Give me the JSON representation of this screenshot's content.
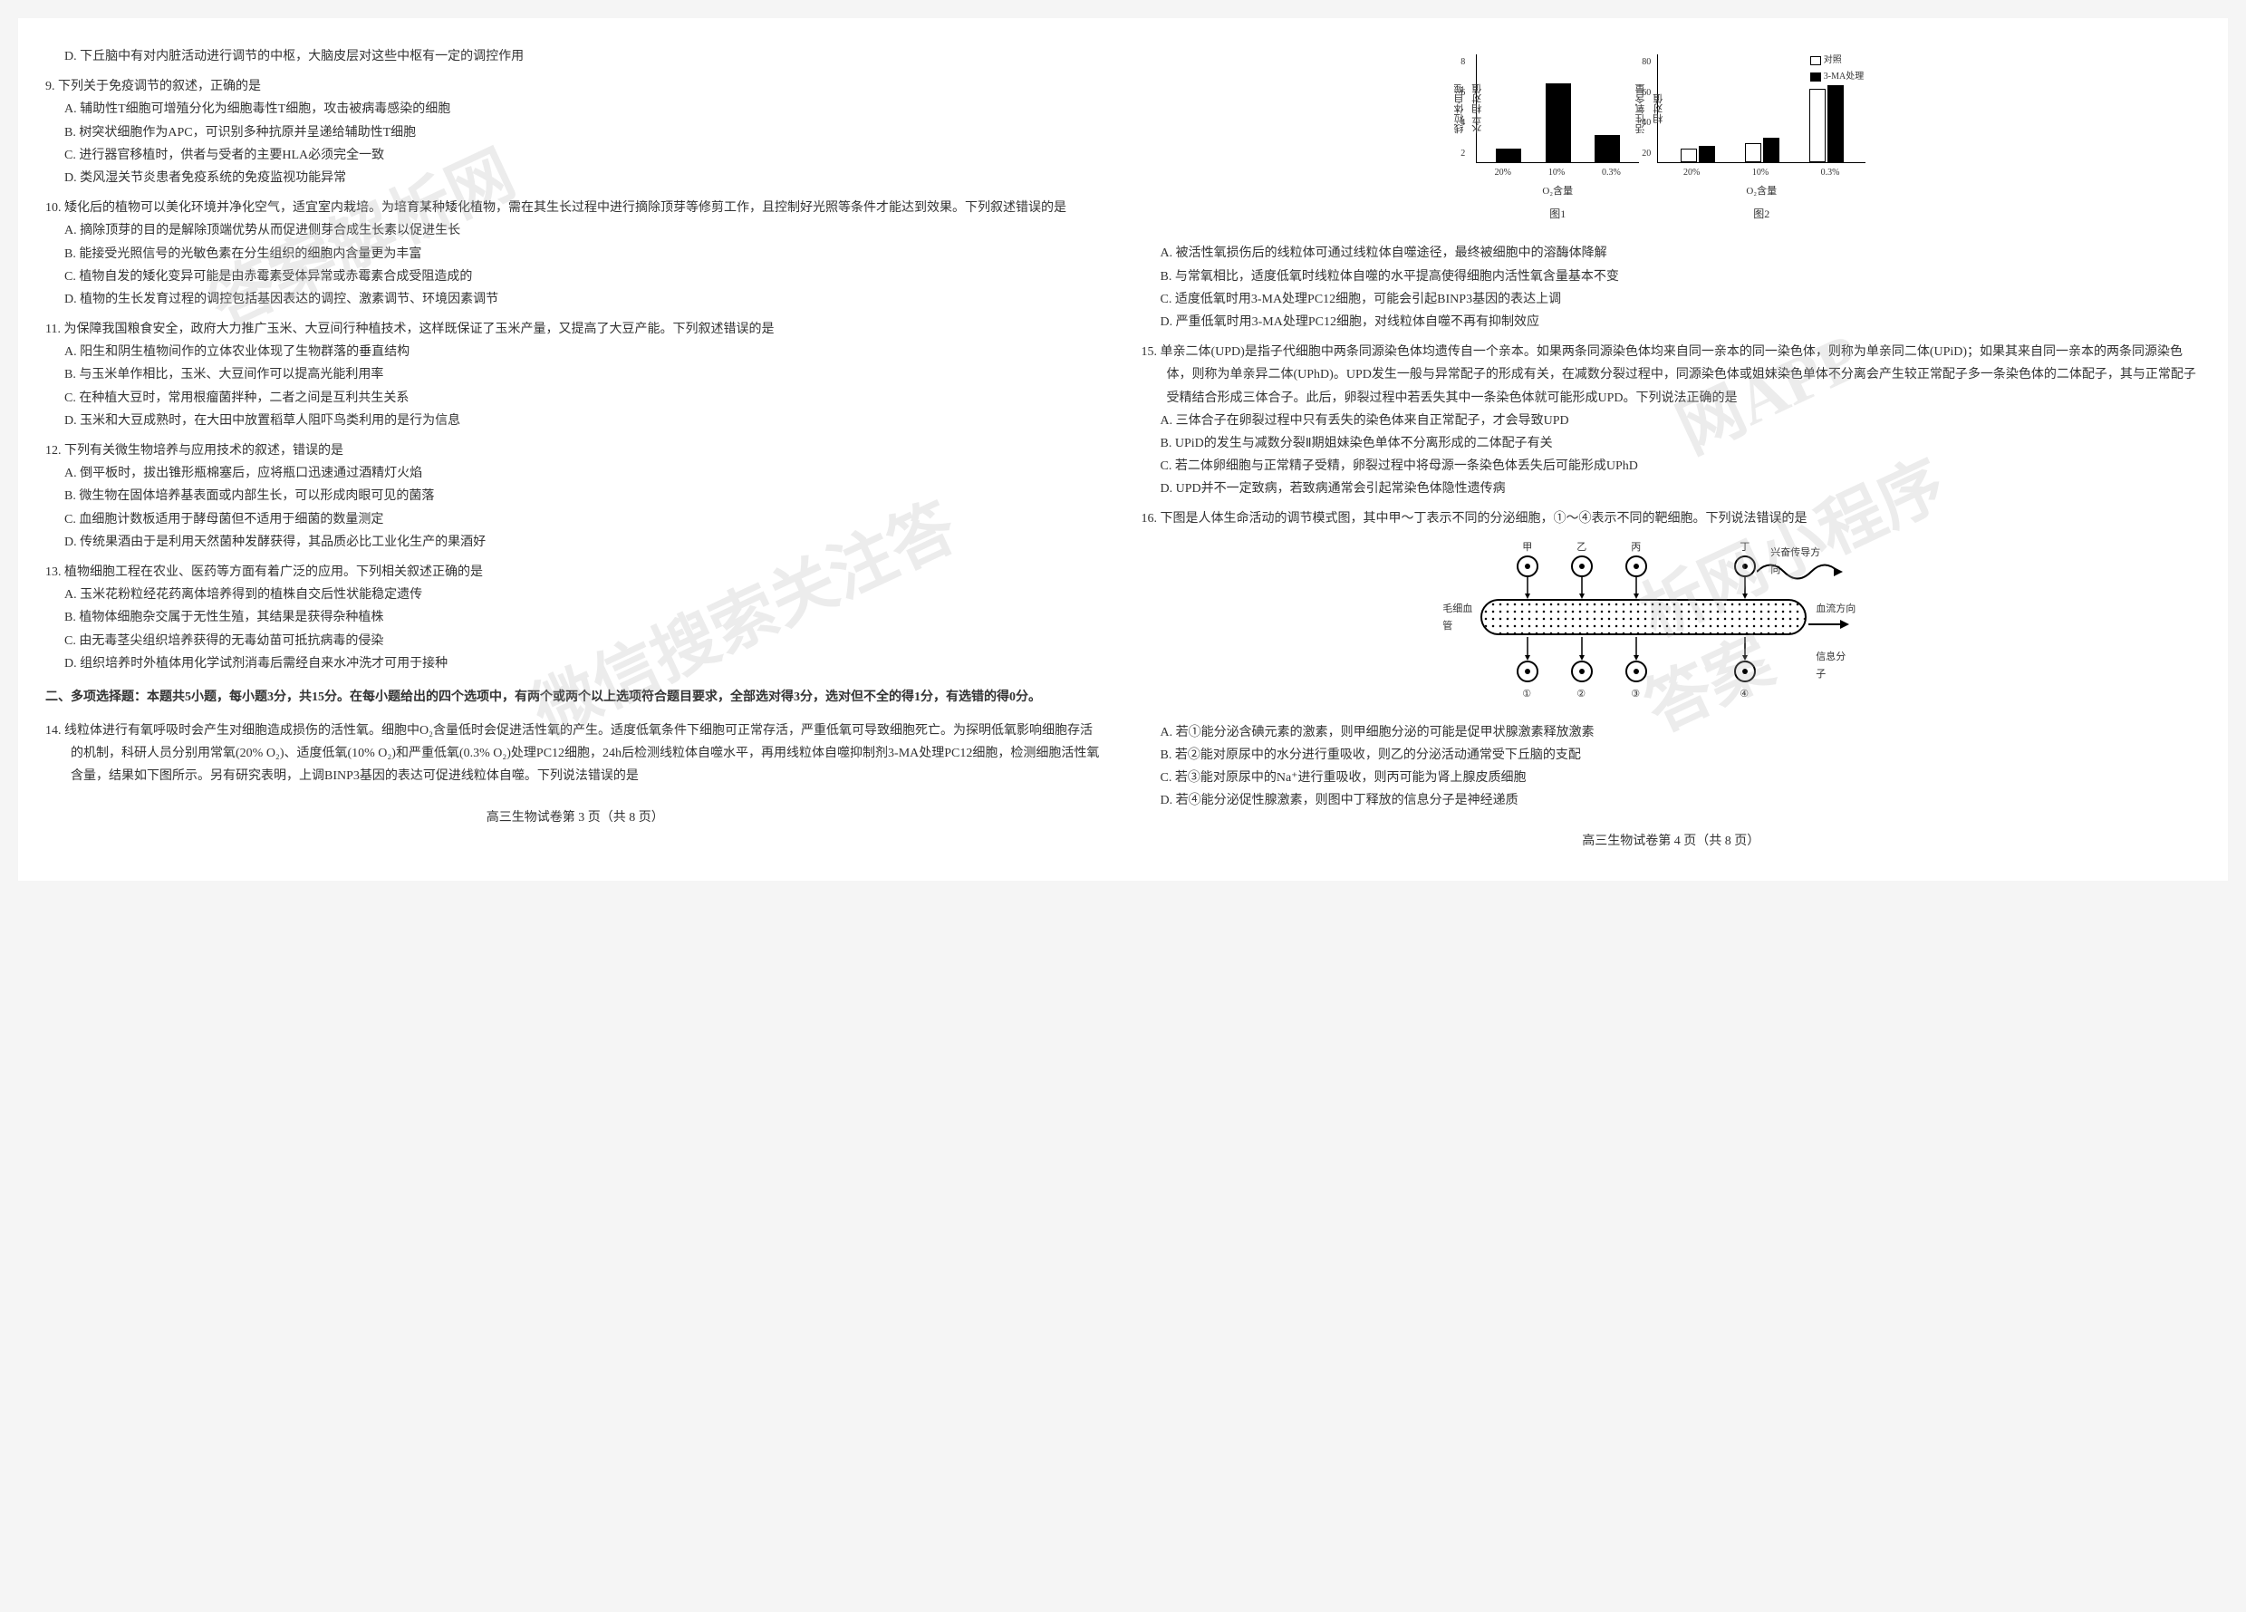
{
  "leftColumn": {
    "q8d": "D. 下丘脑中有对内脏活动进行调节的中枢，大脑皮层对这些中枢有一定的调控作用",
    "q9": {
      "stem": "9. 下列关于免疫调节的叙述，正确的是",
      "a": "A. 辅助性T细胞可增殖分化为细胞毒性T细胞，攻击被病毒感染的细胞",
      "b": "B. 树突状细胞作为APC，可识别多种抗原并呈递给辅助性T细胞",
      "c": "C. 进行器官移植时，供者与受者的主要HLA必须完全一致",
      "d": "D. 类风湿关节炎患者免疫系统的免疫监视功能异常"
    },
    "q10": {
      "stem": "10. 矮化后的植物可以美化环境并净化空气，适宜室内栽培。为培育某种矮化植物，需在其生长过程中进行摘除顶芽等修剪工作，且控制好光照等条件才能达到效果。下列叙述错误的是",
      "a": "A. 摘除顶芽的目的是解除顶端优势从而促进侧芽合成生长素以促进生长",
      "b": "B. 能接受光照信号的光敏色素在分生组织的细胞内含量更为丰富",
      "c": "C. 植物自发的矮化变异可能是由赤霉素受体异常或赤霉素合成受阻造成的",
      "d": "D. 植物的生长发育过程的调控包括基因表达的调控、激素调节、环境因素调节"
    },
    "q11": {
      "stem": "11. 为保障我国粮食安全，政府大力推广玉米、大豆间行种植技术，这样既保证了玉米产量，又提高了大豆产能。下列叙述错误的是",
      "a": "A. 阳生和阴生植物间作的立体农业体现了生物群落的垂直结构",
      "b": "B. 与玉米单作相比，玉米、大豆间作可以提高光能利用率",
      "c": "C. 在种植大豆时，常用根瘤菌拌种，二者之间是互利共生关系",
      "d": "D. 玉米和大豆成熟时，在大田中放置稻草人阻吓鸟类利用的是行为信息"
    },
    "q12": {
      "stem": "12. 下列有关微生物培养与应用技术的叙述，错误的是",
      "a": "A. 倒平板时，拔出锥形瓶棉塞后，应将瓶口迅速通过酒精灯火焰",
      "b": "B. 微生物在固体培养基表面或内部生长，可以形成肉眼可见的菌落",
      "c": "C. 血细胞计数板适用于酵母菌但不适用于细菌的数量测定",
      "d": "D. 传统果酒由于是利用天然菌种发酵获得，其品质必比工业化生产的果酒好"
    },
    "q13": {
      "stem": "13. 植物细胞工程在农业、医药等方面有着广泛的应用。下列相关叙述正确的是",
      "a": "A. 玉米花粉粒经花药离体培养得到的植株自交后性状能稳定遗传",
      "b": "B. 植物体细胞杂交属于无性生殖，其结果是获得杂种植株",
      "c": "C. 由无毒茎尖组织培养获得的无毒幼苗可抵抗病毒的侵染",
      "d": "D. 组织培养时外植体用化学试剂消毒后需经自来水冲洗才可用于接种"
    },
    "section2": "二、多项选择题：本题共5小题，每小题3分，共15分。在每小题给出的四个选项中，有两个或两个以上选项符合题目要求，全部选对得3分，选对但不全的得1分，有选错的得0分。",
    "q14": {
      "stem": "14. 线粒体进行有氧呼吸时会产生对细胞造成损伤的活性氧。细胞中O₂含量低时会促进活性氧的产生。适度低氧条件下细胞可正常存活，严重低氧可导致细胞死亡。为探明低氧影响细胞存活的机制，科研人员分别用常氧(20% O₂)、适度低氧(10% O₂)和严重低氧(0.3% O₂)处理PC12细胞，24h后检测线粒体自噬水平，再用线粒体自噬抑制剂3-MA处理PC12细胞，检测细胞活性氧含量，结果如下图所示。另有研究表明，上调BINP3基因的表达可促进线粒体自噬。下列说法错误的是"
    },
    "footer": "高三生物试卷第 3 页（共 8 页）"
  },
  "rightColumn": {
    "chart1": {
      "ylabel": "线粒体自噬水平相对值",
      "yticks": [
        "8",
        "6",
        "4",
        "2"
      ],
      "categories": [
        "20%",
        "10%",
        "0.3%"
      ],
      "values": [
        1.0,
        5.8,
        2.0
      ],
      "ymax": 8,
      "xlabel": "O₂含量",
      "title": "图1",
      "bar_color": "#000000"
    },
    "chart2": {
      "ylabel": "活性氧含量相对值",
      "yticks": [
        "80",
        "60",
        "40",
        "20"
      ],
      "categories": [
        "20%",
        "10%",
        "0.3%"
      ],
      "series": [
        {
          "name": "对照",
          "values": [
            10,
            14,
            54
          ],
          "fill": "#ffffff"
        },
        {
          "name": "3-MA处理",
          "values": [
            12,
            18,
            70
          ],
          "fill": "#000000"
        }
      ],
      "ymax": 80,
      "xlabel": "O₂含量",
      "title": "图2"
    },
    "q14opts": {
      "a": "A. 被活性氧损伤后的线粒体可通过线粒体自噬途径，最终被细胞中的溶酶体降解",
      "b": "B. 与常氧相比，适度低氧时线粒体自噬的水平提高使得细胞内活性氧含量基本不变",
      "c": "C. 适度低氧时用3-MA处理PC12细胞，可能会引起BINP3基因的表达上调",
      "d": "D. 严重低氧时用3-MA处理PC12细胞，对线粒体自噬不再有抑制效应"
    },
    "q15": {
      "stem": "15. 单亲二体(UPD)是指子代细胞中两条同源染色体均遗传自一个亲本。如果两条同源染色体均来自同一亲本的同一染色体，则称为单亲同二体(UPiD)；如果其来自同一亲本的两条同源染色体，则称为单亲异二体(UPhD)。UPD发生一般与异常配子的形成有关，在减数分裂过程中，同源染色体或姐妹染色单体不分离会产生较正常配子多一条染色体的二体配子，其与正常配子受精结合形成三体合子。此后，卵裂过程中若丢失其中一条染色体就可能形成UPD。下列说法正确的是",
      "a": "A. 三体合子在卵裂过程中只有丢失的染色体来自正常配子，才会导致UPD",
      "b": "B. UPiD的发生与减数分裂Ⅱ期姐妹染色单体不分离形成的二体配子有关",
      "c": "C. 若二体卵细胞与正常精子受精，卵裂过程中将母源一条染色体丢失后可能形成UPhD",
      "d": "D. UPD并不一定致病，若致病通常会引起常染色体隐性遗传病"
    },
    "q16": {
      "stem": "16. 下图是人体生命活动的调节模式图，其中甲～丁表示不同的分泌细胞，①～④表示不同的靶细胞。下列说法错误的是",
      "labels": {
        "jia": "甲",
        "yi": "乙",
        "bing": "丙",
        "ding": "丁",
        "vessel": "毛细血管",
        "nerve": "兴奋传导方向",
        "flow": "血流方向",
        "signal": "信息分子",
        "t1": "①",
        "t2": "②",
        "t3": "③",
        "t4": "④"
      },
      "a": "A. 若①能分泌含碘元素的激素，则甲细胞分泌的可能是促甲状腺激素释放激素",
      "b": "B. 若②能对原尿中的水分进行重吸收，则乙的分泌活动通常受下丘脑的支配",
      "c": "C. 若③能对原尿中的Na⁺进行重吸收，则丙可能为肾上腺皮质细胞",
      "d": "D. 若④能分泌促性腺激素，则图中丁释放的信息分子是神经递质"
    },
    "footer": "高三生物试卷第 4 页（共 8 页）"
  }
}
